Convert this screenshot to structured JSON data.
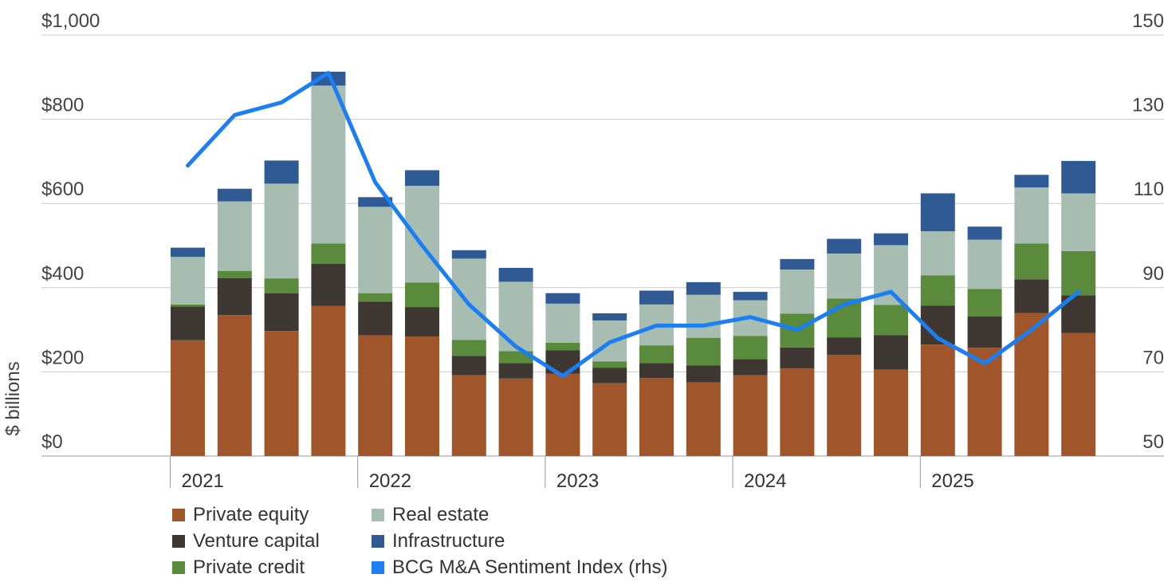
{
  "chart_data": {
    "type": "bar",
    "stacked": true,
    "ylabel": "$ billions",
    "ylim": [
      0,
      1000
    ],
    "y_ticks": [
      "$0",
      "$200",
      "$400",
      "$600",
      "$800",
      "$1,000"
    ],
    "y_tick_values": [
      0,
      200,
      400,
      600,
      800,
      1000
    ],
    "ylim_right": [
      50,
      150
    ],
    "y_ticks_right": [
      "50",
      "70",
      "90",
      "110",
      "130",
      "150"
    ],
    "y_tick_values_right": [
      50,
      70,
      90,
      110,
      130,
      150
    ],
    "years": [
      "2021",
      "2022",
      "2023",
      "2024",
      "2025"
    ],
    "categories": [
      "2021 Q1",
      "2021 Q2",
      "2021 Q3",
      "2021 Q4",
      "2022 Q1",
      "2022 Q2",
      "2022 Q3",
      "2022 Q4",
      "2023 Q1",
      "2023 Q2",
      "2023 Q3",
      "2023 Q4",
      "2024 Q1",
      "2024 Q2",
      "2024 Q3",
      "2024 Q4",
      "2025 Q1",
      "2025 Q2",
      "2025 Q3",
      "2025 Q4"
    ],
    "series": [
      {
        "name": "Private equity",
        "color": "#a0562a",
        "values": [
          275,
          335,
          297,
          357,
          287,
          284,
          192,
          184,
          196,
          173,
          185,
          175,
          192,
          208,
          240,
          205,
          265,
          257,
          340,
          292
        ]
      },
      {
        "name": "Venture capital",
        "color": "#3f3832",
        "values": [
          80,
          88,
          90,
          100,
          80,
          70,
          46,
          37,
          55,
          37,
          36,
          40,
          38,
          50,
          42,
          82,
          92,
          75,
          80,
          90
        ]
      },
      {
        "name": "Private credit",
        "color": "#5a8a3c",
        "values": [
          5,
          17,
          35,
          48,
          20,
          58,
          38,
          28,
          18,
          15,
          42,
          66,
          55,
          80,
          92,
          72,
          72,
          65,
          85,
          105
        ]
      },
      {
        "name": "Real estate",
        "color": "#a7bdb2",
        "values": [
          113,
          165,
          225,
          375,
          205,
          230,
          193,
          165,
          93,
          97,
          97,
          102,
          85,
          105,
          107,
          142,
          105,
          117,
          133,
          137
        ]
      },
      {
        "name": "Infrastructure",
        "color": "#2f5a94",
        "values": [
          22,
          30,
          55,
          33,
          23,
          37,
          20,
          33,
          25,
          17,
          33,
          30,
          20,
          25,
          35,
          28,
          90,
          31,
          30,
          77
        ]
      }
    ],
    "line_series": {
      "name": "BCG M&A Sentiment Index (rhs)",
      "color": "#1b7ef2",
      "axis": "right",
      "values": [
        119,
        131,
        134,
        141,
        115,
        100,
        86,
        76,
        69,
        77,
        81,
        81,
        83,
        80,
        86,
        89,
        78,
        72,
        80,
        89
      ]
    },
    "legend": [
      {
        "label": "Private equity",
        "color": "#a0562a"
      },
      {
        "label": "Real estate",
        "color": "#a7bdb2"
      },
      {
        "label": "Venture capital",
        "color": "#3f3832"
      },
      {
        "label": "Infrastructure",
        "color": "#2f5a94"
      },
      {
        "label": "Private credit",
        "color": "#5a8a3c"
      },
      {
        "label": "BCG M&A Sentiment Index (rhs)",
        "color": "#1b7ef2"
      }
    ],
    "legend_position": "bottom-left",
    "grid": true
  }
}
